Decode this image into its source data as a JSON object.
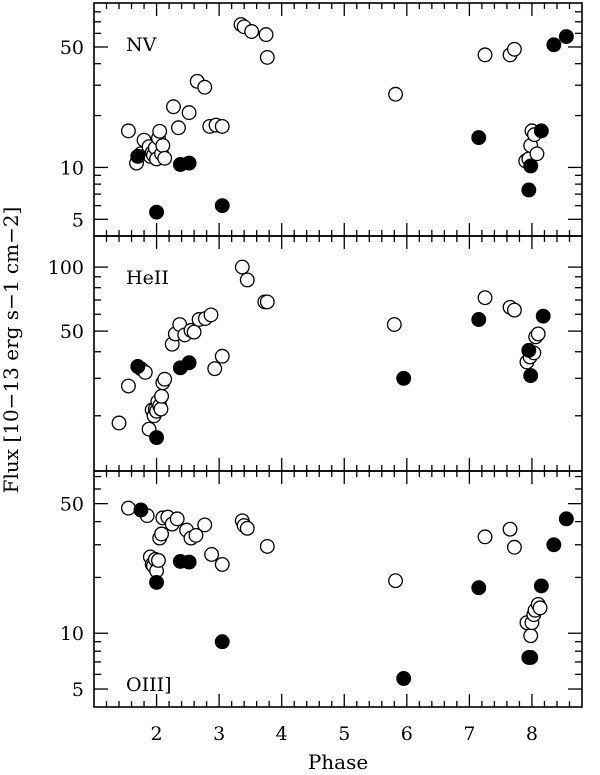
{
  "chart_data": {
    "type": "scatter",
    "xlabel": "Phase",
    "ylabel": "Flux [10−13 erg s−1 cm−2]",
    "xlim": [
      1.0,
      8.8
    ],
    "x_ticks": [
      2,
      3,
      4,
      5,
      6,
      7,
      8
    ],
    "x_tick_labels": [
      "2",
      "3",
      "4",
      "5",
      "6",
      "7",
      "8"
    ],
    "grid": false,
    "marker_styles": {
      "open": "open-circle",
      "filled": "filled-circle"
    },
    "panels": [
      {
        "label": "NV",
        "yscale": "log",
        "ylim": [
          4,
          90
        ],
        "y_ticks": [
          5,
          10,
          50
        ],
        "y_tick_labels": [
          "5",
          "10",
          "50"
        ],
        "series": [
          {
            "marker": "open",
            "points": [
              [
                1.55,
                16.3
              ],
              [
                1.68,
                10.6
              ],
              [
                1.75,
                12.0
              ],
              [
                1.8,
                14.4
              ],
              [
                1.85,
                12.0
              ],
              [
                1.88,
                13.2
              ],
              [
                1.9,
                11.6
              ],
              [
                1.93,
                12.2
              ],
              [
                1.95,
                11.8
              ],
              [
                1.98,
                13.0
              ],
              [
                2.0,
                11.2
              ],
              [
                2.03,
                14.8
              ],
              [
                2.05,
                16.2
              ],
              [
                2.08,
                12.0
              ],
              [
                2.1,
                13.4
              ],
              [
                2.13,
                11.3
              ],
              [
                2.27,
                22.5
              ],
              [
                2.35,
                17.0
              ],
              [
                2.52,
                20.8
              ],
              [
                2.65,
                31.6
              ],
              [
                2.77,
                29.2
              ],
              [
                2.85,
                17.3
              ],
              [
                2.95,
                17.6
              ],
              [
                3.05,
                17.3
              ],
              [
                3.35,
                67.5
              ],
              [
                3.4,
                65.5
              ],
              [
                3.52,
                61.5
              ],
              [
                3.75,
                59.0
              ],
              [
                3.77,
                43.5
              ],
              [
                5.82,
                26.6
              ],
              [
                7.25,
                45.0
              ],
              [
                7.65,
                45.0
              ],
              [
                7.72,
                48.5
              ],
              [
                7.9,
                10.9
              ],
              [
                7.95,
                11.2
              ],
              [
                7.98,
                13.4
              ],
              [
                8.0,
                16.3
              ],
              [
                8.04,
                15.5
              ],
              [
                8.08,
                12.0
              ]
            ]
          },
          {
            "marker": "filled",
            "points": [
              [
                1.7,
                11.6
              ],
              [
                2.0,
                5.5
              ],
              [
                2.38,
                10.4
              ],
              [
                2.52,
                10.6
              ],
              [
                3.05,
                6.0
              ],
              [
                7.15,
                14.9
              ],
              [
                7.95,
                7.4
              ],
              [
                7.98,
                10.2
              ],
              [
                8.15,
                16.3
              ],
              [
                8.35,
                51.5
              ],
              [
                8.55,
                57.5
              ]
            ]
          }
        ]
      },
      {
        "label": "HeII",
        "yscale": "log",
        "ylim": [
          11,
          140
        ],
        "y_ticks": [
          50,
          100
        ],
        "y_tick_labels": [
          "50",
          "100"
        ],
        "series": [
          {
            "marker": "open",
            "points": [
              [
                1.4,
                18.5
              ],
              [
                1.55,
                27.6
              ],
              [
                1.75,
                33.3
              ],
              [
                1.82,
                32.0
              ],
              [
                1.88,
                17.3
              ],
              [
                1.93,
                21.3
              ],
              [
                1.96,
                20.0
              ],
              [
                1.98,
                21.5
              ],
              [
                2.0,
                21.0
              ],
              [
                2.02,
                23.3
              ],
              [
                2.05,
                22.3
              ],
              [
                2.07,
                21.5
              ],
              [
                2.08,
                24.7
              ],
              [
                2.1,
                28.6
              ],
              [
                2.13,
                29.7
              ],
              [
                2.25,
                43.4
              ],
              [
                2.3,
                48.5
              ],
              [
                2.37,
                53.7
              ],
              [
                2.45,
                48.0
              ],
              [
                2.55,
                50.4
              ],
              [
                2.6,
                49.5
              ],
              [
                2.68,
                56.7
              ],
              [
                2.78,
                57.3
              ],
              [
                2.87,
                59.6
              ],
              [
                2.93,
                33.3
              ],
              [
                3.05,
                38.1
              ],
              [
                3.37,
                100.0
              ],
              [
                3.45,
                87.0
              ],
              [
                3.73,
                68.6
              ],
              [
                3.77,
                68.6
              ],
              [
                5.8,
                53.7
              ],
              [
                7.25,
                71.8
              ],
              [
                7.65,
                64.7
              ],
              [
                7.72,
                62.8
              ],
              [
                7.92,
                35.8
              ],
              [
                7.97,
                37.8
              ],
              [
                8.03,
                39.5
              ],
              [
                8.06,
                47.0
              ],
              [
                8.1,
                48.5
              ]
            ]
          },
          {
            "marker": "filled",
            "points": [
              [
                1.7,
                34.1
              ],
              [
                2.0,
                15.8
              ],
              [
                2.38,
                33.6
              ],
              [
                2.52,
                35.5
              ],
              [
                5.95,
                30.0
              ],
              [
                7.15,
                56.7
              ],
              [
                7.95,
                40.6
              ],
              [
                7.98,
                30.9
              ],
              [
                8.18,
                58.8
              ]
            ]
          }
        ]
      },
      {
        "label": "OIII]",
        "yscale": "log",
        "ylim": [
          4,
          75
        ],
        "y_ticks": [
          5,
          10,
          50
        ],
        "y_tick_labels": [
          "5",
          "10",
          "50"
        ],
        "series": [
          {
            "marker": "open",
            "points": [
              [
                1.55,
                47.3
              ],
              [
                1.85,
                43.1
              ],
              [
                1.9,
                25.8
              ],
              [
                1.93,
                23.5
              ],
              [
                1.95,
                23.1
              ],
              [
                1.98,
                25.0
              ],
              [
                2.0,
                21.7
              ],
              [
                2.03,
                24.7
              ],
              [
                2.05,
                32.6
              ],
              [
                2.08,
                34.3
              ],
              [
                2.1,
                41.9
              ],
              [
                2.18,
                42.3
              ],
              [
                2.25,
                38.8
              ],
              [
                2.33,
                41.4
              ],
              [
                2.48,
                36.0
              ],
              [
                2.55,
                32.6
              ],
              [
                2.63,
                33.7
              ],
              [
                2.77,
                38.4
              ],
              [
                2.88,
                26.6
              ],
              [
                3.05,
                23.5
              ],
              [
                3.37,
                40.4
              ],
              [
                3.4,
                38.1
              ],
              [
                3.45,
                36.8
              ],
              [
                3.77,
                29.4
              ],
              [
                5.82,
                19.2
              ],
              [
                7.25,
                33.1
              ],
              [
                7.65,
                36.4
              ],
              [
                7.72,
                29.1
              ],
              [
                7.92,
                11.4
              ],
              [
                7.98,
                9.7
              ],
              [
                8.0,
                11.4
              ],
              [
                8.03,
                12.6
              ],
              [
                8.05,
                13.3
              ],
              [
                8.1,
                14.3
              ],
              [
                8.13,
                13.7
              ]
            ]
          },
          {
            "marker": "filled",
            "points": [
              [
                1.75,
                46.2
              ],
              [
                2.0,
                18.8
              ],
              [
                2.38,
                24.4
              ],
              [
                2.52,
                24.2
              ],
              [
                3.05,
                9.0
              ],
              [
                5.95,
                5.7
              ],
              [
                7.15,
                17.6
              ],
              [
                7.95,
                7.4
              ],
              [
                7.98,
                7.4
              ],
              [
                8.15,
                18.0
              ],
              [
                8.35,
                30.0
              ],
              [
                8.55,
                41.4
              ]
            ]
          }
        ]
      }
    ]
  }
}
